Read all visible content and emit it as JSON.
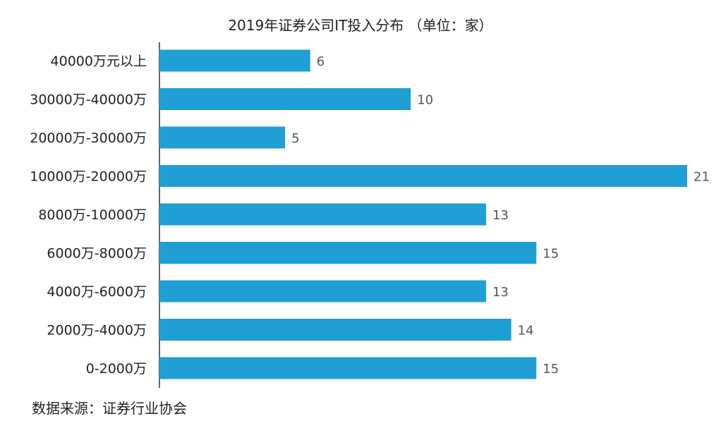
{
  "chart_data": {
    "type": "bar",
    "orientation": "horizontal",
    "title": "2019年证券公司IT投入分布 （单位：家）",
    "categories": [
      "40000万元以上",
      "30000万-40000万",
      "20000万-30000万",
      "10000万-20000万",
      "8000万-10000万",
      "6000万-8000万",
      "4000万-6000万",
      "2000万-4000万",
      "0-2000万"
    ],
    "values": [
      6,
      10,
      5,
      21,
      13,
      15,
      13,
      14,
      15
    ],
    "xlim": [
      0,
      21
    ],
    "bar_color": "#1f9fd4",
    "grid": false,
    "data_labels": true
  },
  "source": "数据来源：证券行业协会"
}
